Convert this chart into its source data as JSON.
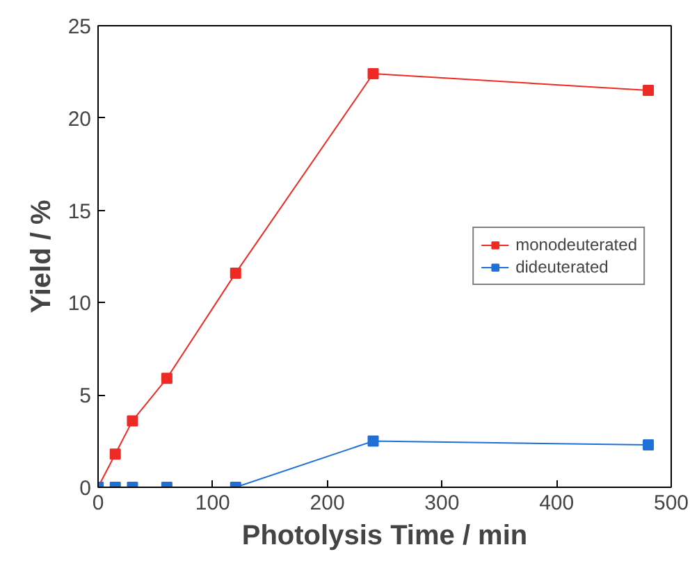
{
  "chart_data": {
    "type": "line",
    "xlabel": "Photolysis Time / min",
    "ylabel": "Yield / %",
    "xlim": [
      0,
      500
    ],
    "ylim": [
      0,
      25
    ],
    "xticks": [
      0,
      100,
      200,
      300,
      400,
      500
    ],
    "yticks": [
      0,
      5,
      10,
      15,
      20,
      25
    ],
    "x": [
      0,
      15,
      30,
      60,
      120,
      240,
      480
    ],
    "series": [
      {
        "name": "monodeuterated",
        "color": "#ee2a24",
        "values": [
          0,
          1.8,
          3.6,
          5.9,
          11.6,
          22.4,
          21.5
        ]
      },
      {
        "name": "dideuterated",
        "color": "#1f6fd8",
        "values": [
          0,
          0,
          0,
          0,
          0,
          2.5,
          2.3
        ]
      }
    ],
    "marker": "square",
    "grid": false,
    "legend": "right"
  }
}
